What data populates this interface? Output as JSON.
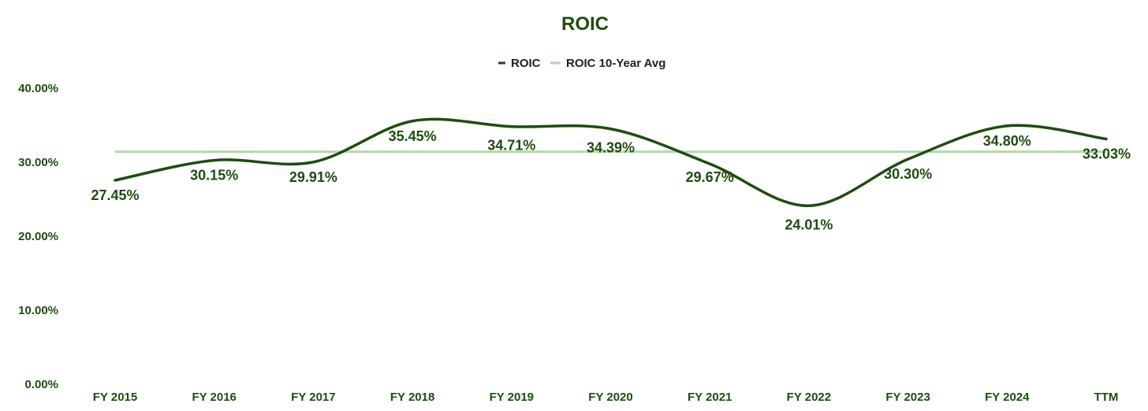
{
  "colors": {
    "series_main": "#1e4d0f",
    "series_avg": "#b2d8a8",
    "text": "#1e4d0f",
    "legend_text": "#222222"
  },
  "chart_data": {
    "type": "line",
    "title": "ROIC",
    "xlabel": "",
    "ylabel": "",
    "categories": [
      "FY 2015",
      "FY 2016",
      "FY 2017",
      "FY 2018",
      "FY 2019",
      "FY 2020",
      "FY 2021",
      "FY 2022",
      "FY 2023",
      "FY 2024",
      "TTM"
    ],
    "ylim": [
      0,
      40
    ],
    "yticks": [
      0,
      10,
      20,
      30,
      40
    ],
    "ytick_labels": [
      "0.00%",
      "10.00%",
      "20.00%",
      "30.00%",
      "40.00%"
    ],
    "grid": false,
    "legend_position": "top-center",
    "series": [
      {
        "name": "ROIC",
        "values": [
          27.45,
          30.15,
          29.91,
          35.45,
          34.71,
          34.39,
          29.67,
          24.01,
          30.3,
          34.8,
          33.03
        ],
        "labels": [
          "27.45%",
          "30.15%",
          "29.91%",
          "35.45%",
          "34.71%",
          "34.39%",
          "29.67%",
          "24.01%",
          "30.30%",
          "34.80%",
          "33.03%"
        ],
        "smooth": true
      },
      {
        "name": "ROIC 10-Year Avg",
        "values": [
          31.3,
          31.3,
          31.3,
          31.3,
          31.3,
          31.3,
          31.3,
          31.3,
          31.3,
          31.3,
          31.3
        ]
      }
    ]
  }
}
